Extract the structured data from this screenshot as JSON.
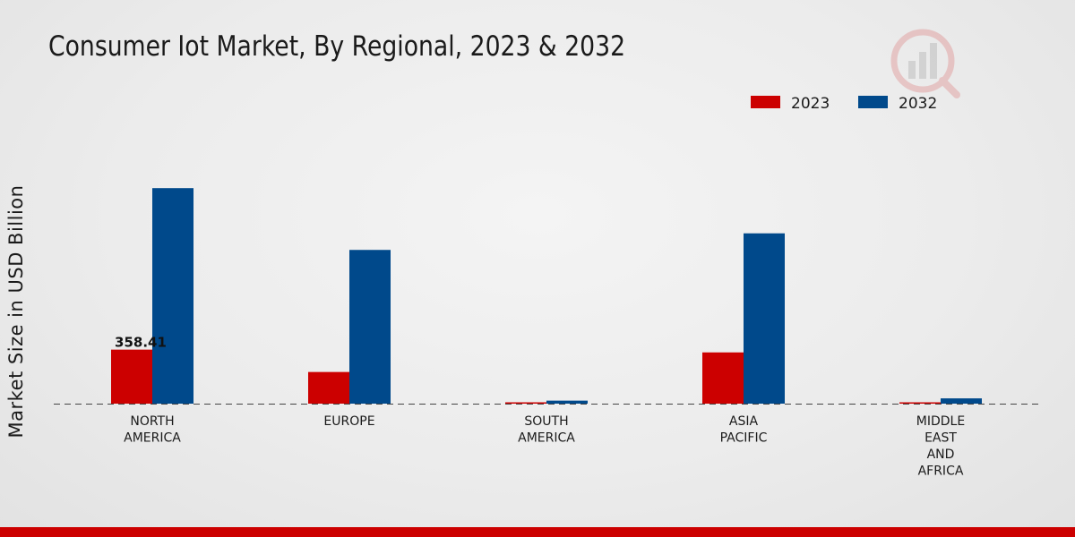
{
  "colors": {
    "series_2023": "#cc0000",
    "series_2032": "#00498b",
    "bottom_band": "#cc0000"
  },
  "watermark": {
    "icon": "market-research-logo-icon"
  },
  "chart_data": {
    "type": "bar",
    "title": "Consumer Iot Market, By Regional, 2023 & 2032",
    "xlabel": "",
    "ylabel": "Market Size in USD Billion",
    "categories": [
      [
        "NORTH",
        "AMERICA"
      ],
      [
        "EUROPE"
      ],
      [
        "SOUTH",
        "AMERICA"
      ],
      [
        "ASIA",
        "PACIFIC"
      ],
      [
        "MIDDLE",
        "EAST",
        "AND",
        "AFRICA"
      ]
    ],
    "series": [
      {
        "name": "2023",
        "color": "#cc0000",
        "values": [
          358.41,
          210,
          4,
          340,
          5
        ]
      },
      {
        "name": "2032",
        "color": "#00498b",
        "values": [
          1430,
          1020,
          20,
          1130,
          35
        ]
      }
    ],
    "data_labels": [
      {
        "series": 0,
        "category": 0,
        "text": "358.41"
      }
    ],
    "ylim": [
      0,
      2500
    ],
    "grid": false,
    "baseline": "dashed",
    "legend_position": "top-right"
  }
}
